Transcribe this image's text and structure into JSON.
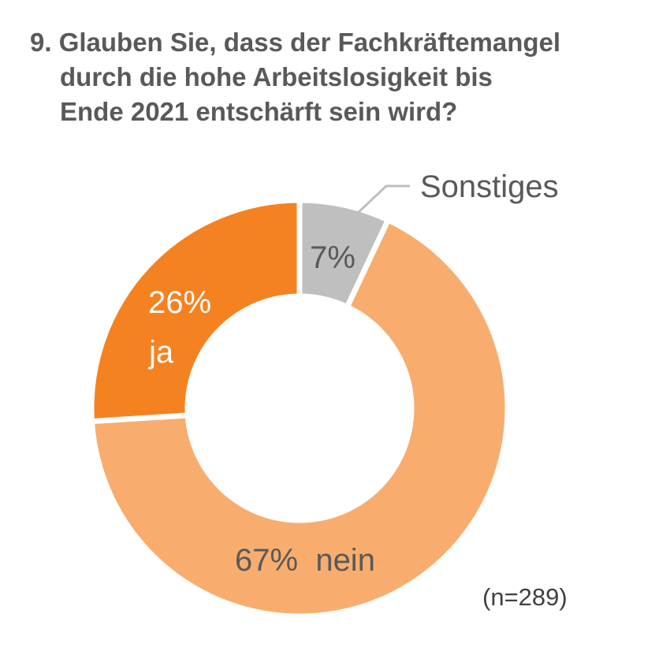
{
  "title": {
    "lines": [
      "9. Glauben Sie, dass der Fachkräftemangel",
      "durch die hohe Arbeitslosigkeit bis",
      "Ende 2021 entschärft sein wird?"
    ]
  },
  "chart_data": {
    "type": "pie",
    "subtype": "donut",
    "title": "9. Glauben Sie, dass der Fachkräftemangel durch die hohe Arbeitslosigkeit bis Ende 2021 entschärft sein wird?",
    "slices": [
      {
        "name": "Sonstiges",
        "value": 7,
        "label": "7%",
        "color": "#bfbfbf",
        "label_color": "#595959"
      },
      {
        "name": "nein",
        "value": 67,
        "label": "67%",
        "color": "#f8ad6e",
        "label_color": "#595959"
      },
      {
        "name": "ja",
        "value": 26,
        "label": "26%",
        "color": "#f58220",
        "label_color": "#ffffff"
      }
    ],
    "start_angle": "12 o'clock, clockwise",
    "callout_label": "Sonstiges",
    "nein_label": "67%  nein",
    "ja_name": "ja",
    "note": "(n=289)"
  }
}
